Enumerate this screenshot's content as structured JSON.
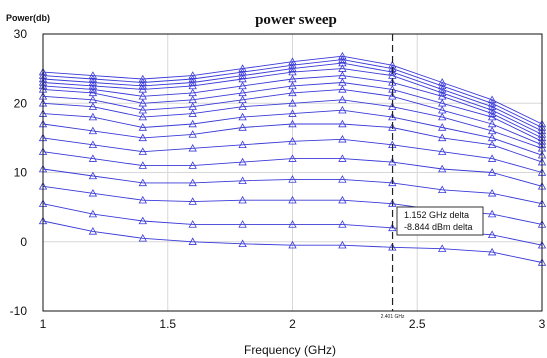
{
  "chart_data": {
    "type": "line",
    "title": "power sweep",
    "ylabel": "Power(db)",
    "xlabel": "Frequency (GHz)",
    "xlim": [
      1,
      3
    ],
    "ylim": [
      -10,
      30
    ],
    "xticks": [
      "1",
      "1.5",
      "2",
      "2.5",
      "3"
    ],
    "yticks": [
      "30",
      "20",
      "10",
      "0",
      "-10"
    ],
    "grid": true,
    "x": [
      1.0,
      1.2,
      1.4,
      1.6,
      1.8,
      2.0,
      2.2,
      2.4,
      2.6,
      2.8,
      3.0
    ],
    "series": [
      {
        "values": [
          24.5,
          24.0,
          23.5,
          24.0,
          25.0,
          26.0,
          26.8,
          25.5,
          23.0,
          20.5,
          17.0
        ]
      },
      {
        "values": [
          24.0,
          23.5,
          23.0,
          23.5,
          24.5,
          25.5,
          26.3,
          25.0,
          22.5,
          20.0,
          16.5
        ]
      },
      {
        "values": [
          23.5,
          23.0,
          22.5,
          23.0,
          24.0,
          25.0,
          25.8,
          24.5,
          22.0,
          19.5,
          16.0
        ]
      },
      {
        "values": [
          23.0,
          22.5,
          22.0,
          22.5,
          23.5,
          24.5,
          25.0,
          24.0,
          21.5,
          19.0,
          15.5
        ]
      },
      {
        "values": [
          22.5,
          22.0,
          21.0,
          21.5,
          22.5,
          23.5,
          24.0,
          23.0,
          21.0,
          18.5,
          15.0
        ]
      },
      {
        "values": [
          22.0,
          21.5,
          20.0,
          20.5,
          21.5,
          22.5,
          23.0,
          22.0,
          20.0,
          18.0,
          14.5
        ]
      },
      {
        "values": [
          21.0,
          20.5,
          19.0,
          19.5,
          20.5,
          21.5,
          22.0,
          21.0,
          19.0,
          17.0,
          14.0
        ]
      },
      {
        "values": [
          20.0,
          19.5,
          18.0,
          18.5,
          19.5,
          20.0,
          20.5,
          19.5,
          18.0,
          16.0,
          13.5
        ]
      },
      {
        "values": [
          18.5,
          18.0,
          16.5,
          17.0,
          18.0,
          18.5,
          19.0,
          18.0,
          16.5,
          15.0,
          12.5
        ]
      },
      {
        "values": [
          17.0,
          16.0,
          15.0,
          15.5,
          16.5,
          17.0,
          17.0,
          16.5,
          15.0,
          14.0,
          11.5
        ]
      },
      {
        "values": [
          15.0,
          14.0,
          13.0,
          13.5,
          14.0,
          14.5,
          14.8,
          14.0,
          13.0,
          12.0,
          10.0
        ]
      },
      {
        "values": [
          13.0,
          12.0,
          11.0,
          11.0,
          11.5,
          12.0,
          12.0,
          11.5,
          10.5,
          10.0,
          8.0
        ]
      },
      {
        "values": [
          10.5,
          9.5,
          8.5,
          8.5,
          8.8,
          9.0,
          9.0,
          8.5,
          7.5,
          7.0,
          5.5
        ]
      },
      {
        "values": [
          8.0,
          7.0,
          6.0,
          5.8,
          6.0,
          6.0,
          6.0,
          5.5,
          4.5,
          4.0,
          2.5
        ]
      },
      {
        "values": [
          5.5,
          4.0,
          3.0,
          2.5,
          2.5,
          2.5,
          2.5,
          2.0,
          1.5,
          1.0,
          -0.5
        ]
      },
      {
        "values": [
          3.0,
          1.5,
          0.5,
          0.0,
          -0.3,
          -0.5,
          -0.5,
          -0.8,
          -1.0,
          -1.5,
          -3.0
        ]
      }
    ],
    "marker_line": {
      "x": 2.401,
      "label": "2.401 GHz"
    },
    "delta_box": {
      "lines": [
        "1.152 GHz delta",
        "-8.844 dBm delta"
      ]
    },
    "colors": {
      "series": "#3a3ad8",
      "grid": "#d8d8d8",
      "axis": "#111111",
      "marker": "#222222"
    }
  }
}
